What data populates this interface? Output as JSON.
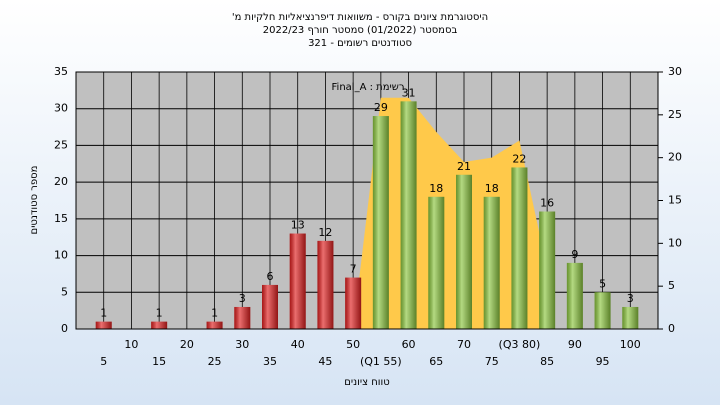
{
  "chart_data": {
    "type": "bar",
    "title_lines": [
      "היסטוגרמת ציונים בקורס - משוואות דיפרנציאליות חלקיות מ'",
      "בסמסטר (01/2022) סמסטר חורף 2022/23",
      "סטודנטים רשומים - 321"
    ],
    "annotation": "רשימת : Final_A",
    "xlabel": "טווח ציונים",
    "ylabel": "מספר סטודנטים",
    "categories": [
      "5",
      "10",
      "15",
      "20",
      "25",
      "30",
      "35",
      "40",
      "45",
      "50",
      "(Q1 55)",
      "60",
      "65",
      "70",
      "75",
      "(Q3 80)",
      "85",
      "90",
      "95",
      "100"
    ],
    "values": [
      1,
      0,
      1,
      0,
      1,
      3,
      6,
      13,
      12,
      7,
      29,
      31,
      18,
      21,
      18,
      22,
      16,
      9,
      5,
      3
    ],
    "colors": [
      "#e02020",
      "#e02020",
      "#e02020",
      "#e02020",
      "#e02020",
      "#e02020",
      "#e02020",
      "#e02020",
      "#e02020",
      "#e02020",
      "#8cc63f",
      "#8cc63f",
      "#8cc63f",
      "#8cc63f",
      "#8cc63f",
      "#8cc63f",
      "#8cc63f",
      "#8cc63f",
      "#8cc63f",
      "#8cc63f"
    ],
    "area": {
      "axis": "y2",
      "color": "#ffc94a",
      "values": [
        null,
        null,
        null,
        null,
        null,
        null,
        null,
        null,
        null,
        0,
        27,
        27,
        23,
        19.5,
        20,
        22,
        7,
        null,
        null,
        null
      ]
    },
    "ylim": [
      0,
      35
    ],
    "yticks": [
      0,
      5,
      10,
      15,
      20,
      25,
      30,
      35
    ],
    "y2lim": [
      0,
      30
    ],
    "y2ticks": [
      0,
      5,
      10,
      15,
      20,
      25,
      30
    ],
    "grid": true
  }
}
